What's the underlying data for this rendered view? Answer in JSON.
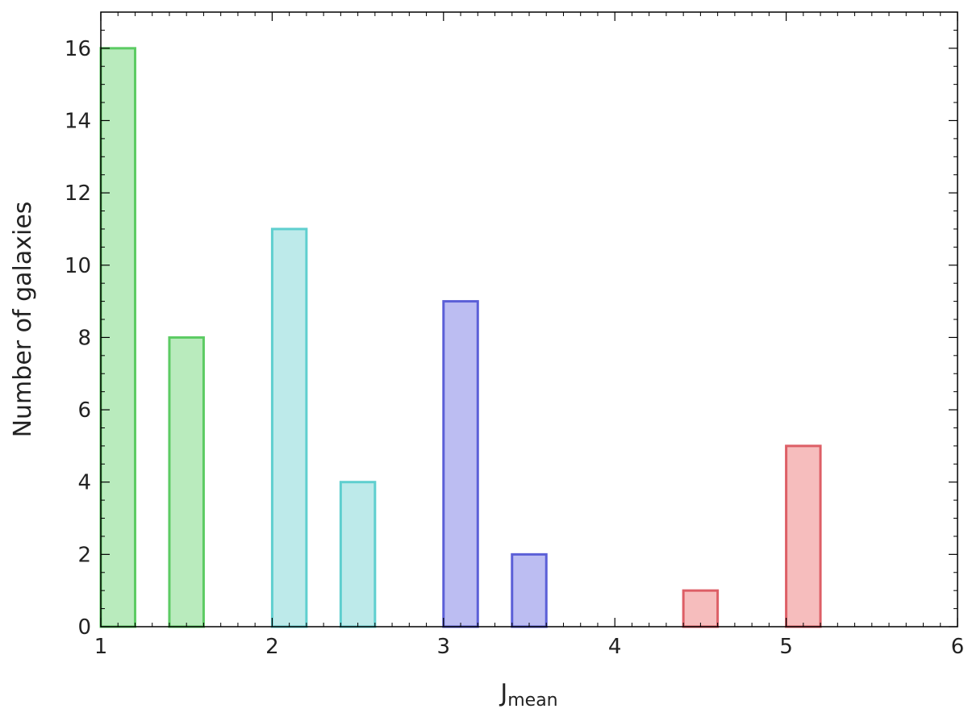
{
  "chart_data": {
    "type": "bar",
    "title": "",
    "xlabel": "J",
    "xlabel_subscript": "mean",
    "ylabel": "Number of galaxies",
    "xlim": [
      1,
      6
    ],
    "ylim": [
      0,
      17
    ],
    "xticks": [
      1,
      2,
      3,
      4,
      5,
      6
    ],
    "yticks": [
      0,
      2,
      4,
      6,
      8,
      10,
      12,
      14,
      16
    ],
    "bar_width": 0.2,
    "grid": false,
    "bars": [
      {
        "x_start": 1.0,
        "value": 16,
        "fill": "#b9ebbd",
        "stroke": "#5ccb63"
      },
      {
        "x_start": 1.4,
        "value": 8,
        "fill": "#b9ebbd",
        "stroke": "#5ccb63"
      },
      {
        "x_start": 2.0,
        "value": 11,
        "fill": "#bdeaea",
        "stroke": "#5fcfcf"
      },
      {
        "x_start": 2.4,
        "value": 4,
        "fill": "#bdeaea",
        "stroke": "#5fcfcf"
      },
      {
        "x_start": 3.0,
        "value": 9,
        "fill": "#bcbdf2",
        "stroke": "#5b5fd7"
      },
      {
        "x_start": 3.4,
        "value": 2,
        "fill": "#bcbdf2",
        "stroke": "#5b5fd7"
      },
      {
        "x_start": 4.4,
        "value": 1,
        "fill": "#f6bdbd",
        "stroke": "#dd5f66"
      },
      {
        "x_start": 5.0,
        "value": 5,
        "fill": "#f6bdbd",
        "stroke": "#dd5f66"
      }
    ]
  }
}
